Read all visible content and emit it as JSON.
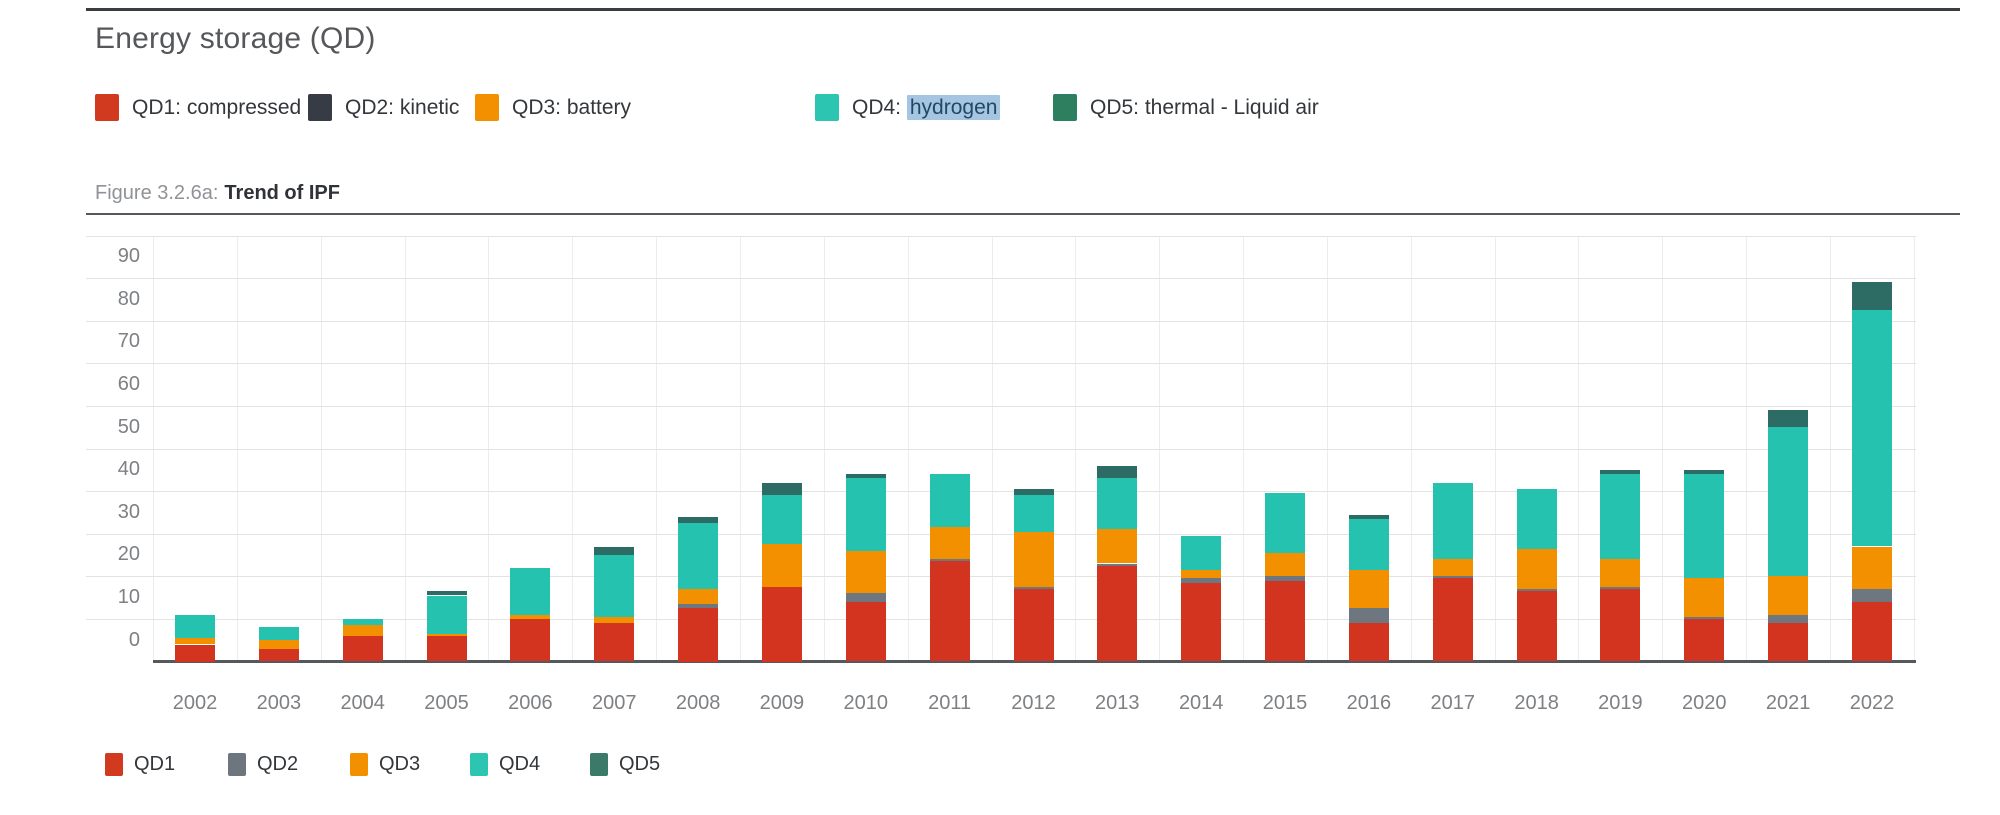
{
  "header": {
    "title": "Energy storage (QD)"
  },
  "caption": {
    "prefix": "Figure 3.2.6a:",
    "title": "Trend of IPF"
  },
  "legend_top": {
    "items": [
      {
        "id": "qd1",
        "label": "QD1: compressed air",
        "color": "#d23a20"
      },
      {
        "id": "qd2",
        "label": "QD2: kinetic",
        "color": "#363b46"
      },
      {
        "id": "qd3",
        "label": "QD3: battery",
        "color": "#f39000"
      },
      {
        "id": "qd4",
        "label_prefix": "QD4: ",
        "label_highlight": "hydrogen",
        "color": "#2cc5b2"
      },
      {
        "id": "qd5",
        "label": "QD5: thermal - Liquid air",
        "color": "#2e7f60"
      }
    ],
    "highlight_bg": "#a5c5e2",
    "highlight_text": "#1f4a66"
  },
  "legend_bottom": {
    "items": [
      {
        "id": "qd1",
        "label": "QD1",
        "color": "#d23a20"
      },
      {
        "id": "qd2",
        "label": "QD2",
        "color": "#6d757f"
      },
      {
        "id": "qd3",
        "label": "QD3",
        "color": "#f39000"
      },
      {
        "id": "qd4",
        "label": "QD4",
        "color": "#2cc5b2"
      },
      {
        "id": "qd5",
        "label": "QD5",
        "color": "#3b7a68"
      }
    ]
  },
  "chart_data": {
    "type": "bar",
    "stacked": true,
    "title": "Energy storage (QD)",
    "subtitle": "Figure 3.2.6a: Trend of IPF",
    "categories": [
      "2002",
      "2003",
      "2004",
      "2005",
      "2006",
      "2007",
      "2008",
      "2009",
      "2010",
      "2011",
      "2012",
      "2013",
      "2014",
      "2015",
      "2016",
      "2017",
      "2018",
      "2019",
      "2020",
      "2021",
      "2022"
    ],
    "series": [
      {
        "name": "QD1",
        "label": "QD1: compressed air",
        "color": "#d23420",
        "values": [
          4,
          3,
          6,
          6,
          10,
          9,
          12.5,
          17.5,
          14,
          23.5,
          17,
          22.5,
          18.5,
          19,
          9,
          19.5,
          16.5,
          17,
          10,
          9,
          14
        ]
      },
      {
        "name": "QD2",
        "label": "QD2: kinetic",
        "color": "#6e7680",
        "values": [
          0,
          0,
          0,
          0,
          0,
          0,
          1,
          0,
          2,
          0.5,
          0.5,
          0.5,
          1,
          1,
          3.5,
          0.5,
          0.5,
          0.5,
          0.5,
          2,
          3
        ]
      },
      {
        "name": "QD3",
        "label": "QD3: battery",
        "color": "#f39000",
        "values": [
          1.5,
          2,
          2.5,
          0.5,
          1,
          1.5,
          3.5,
          10,
          10,
          7.5,
          13,
          8,
          2,
          5.5,
          9,
          4,
          9.5,
          6.5,
          9,
          9,
          10
        ]
      },
      {
        "name": "QD4",
        "label": "QD4: hydrogen",
        "color": "#25c2b0",
        "values": [
          5.5,
          3,
          1.5,
          9,
          11,
          14.5,
          15.5,
          11.5,
          17,
          12.5,
          8.5,
          12,
          8,
          14,
          12,
          18,
          14,
          20,
          24.5,
          35,
          55.5
        ]
      },
      {
        "name": "QD5",
        "label": "QD5: thermal - Liquid air",
        "color": "#2c6c64",
        "values": [
          0,
          0,
          0,
          1,
          0,
          2,
          1.5,
          3,
          1,
          0,
          1.5,
          3,
          0,
          0,
          1,
          0,
          0,
          1,
          1,
          4,
          6.5
        ]
      }
    ],
    "ylim": [
      0,
      100
    ],
    "yticks": [
      0,
      10,
      20,
      30,
      40,
      50,
      60,
      70,
      80,
      90
    ],
    "xlabel": "",
    "ylabel": "",
    "grid": true,
    "legend_position": "top-and-bottom"
  }
}
